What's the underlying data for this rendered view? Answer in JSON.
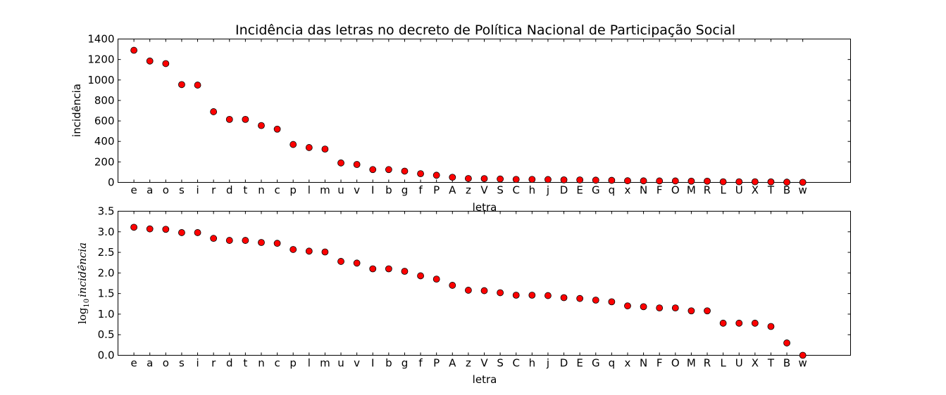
{
  "chart_data": [
    {
      "type": "scatter",
      "title": "Incidência das letras no decreto de Política Nacional de Participação Social",
      "xlabel": "letra",
      "ylabel": "incidência",
      "categories": [
        "e",
        "a",
        "o",
        "s",
        "i",
        "r",
        "d",
        "t",
        "n",
        "c",
        "p",
        "l",
        "m",
        "u",
        "v",
        "I",
        "b",
        "g",
        "f",
        "P",
        "A",
        "z",
        "V",
        "S",
        "C",
        "h",
        "j",
        "D",
        "E",
        "G",
        "q",
        "x",
        "N",
        "F",
        "O",
        "M",
        "R",
        "L",
        "U",
        "X",
        "T",
        "B",
        "w"
      ],
      "values": [
        1290,
        1185,
        1160,
        955,
        950,
        690,
        615,
        615,
        555,
        520,
        370,
        340,
        325,
        190,
        175,
        125,
        125,
        110,
        85,
        70,
        50,
        38,
        37,
        33,
        29,
        29,
        28,
        25,
        24,
        22,
        20,
        16,
        15,
        14,
        14,
        12,
        12,
        6,
        6,
        6,
        5,
        2,
        1
      ],
      "yticks": [
        "0",
        "200",
        "400",
        "600",
        "800",
        "1000",
        "1200",
        "1400"
      ],
      "ylim": [
        0,
        1400
      ],
      "xlim": [
        -1,
        45
      ],
      "grid": false,
      "marker_color": "#ff0000"
    },
    {
      "type": "scatter",
      "xlabel": "letra",
      "ylabel": {
        "prefix": "log",
        "subscript": "10",
        "main": "incidência"
      },
      "categories": [
        "e",
        "a",
        "o",
        "s",
        "i",
        "r",
        "d",
        "t",
        "n",
        "c",
        "p",
        "l",
        "m",
        "u",
        "v",
        "I",
        "b",
        "g",
        "f",
        "P",
        "A",
        "z",
        "V",
        "S",
        "C",
        "h",
        "j",
        "D",
        "E",
        "G",
        "q",
        "x",
        "N",
        "F",
        "O",
        "M",
        "R",
        "L",
        "U",
        "X",
        "T",
        "B",
        "w"
      ],
      "values": [
        3.11,
        3.07,
        3.06,
        2.98,
        2.98,
        2.84,
        2.79,
        2.79,
        2.74,
        2.72,
        2.57,
        2.53,
        2.51,
        2.28,
        2.24,
        2.1,
        2.1,
        2.04,
        1.93,
        1.85,
        1.7,
        1.58,
        1.57,
        1.52,
        1.46,
        1.46,
        1.45,
        1.4,
        1.38,
        1.34,
        1.3,
        1.2,
        1.18,
        1.15,
        1.15,
        1.08,
        1.08,
        0.78,
        0.78,
        0.78,
        0.7,
        0.3,
        0.0
      ],
      "yticks": [
        "0.0",
        "0.5",
        "1.0",
        "1.5",
        "2.0",
        "2.5",
        "3.0",
        "3.5"
      ],
      "ylim": [
        0,
        3.5
      ],
      "xlim": [
        -1,
        45
      ],
      "grid": false,
      "marker_color": "#ff0000"
    }
  ]
}
